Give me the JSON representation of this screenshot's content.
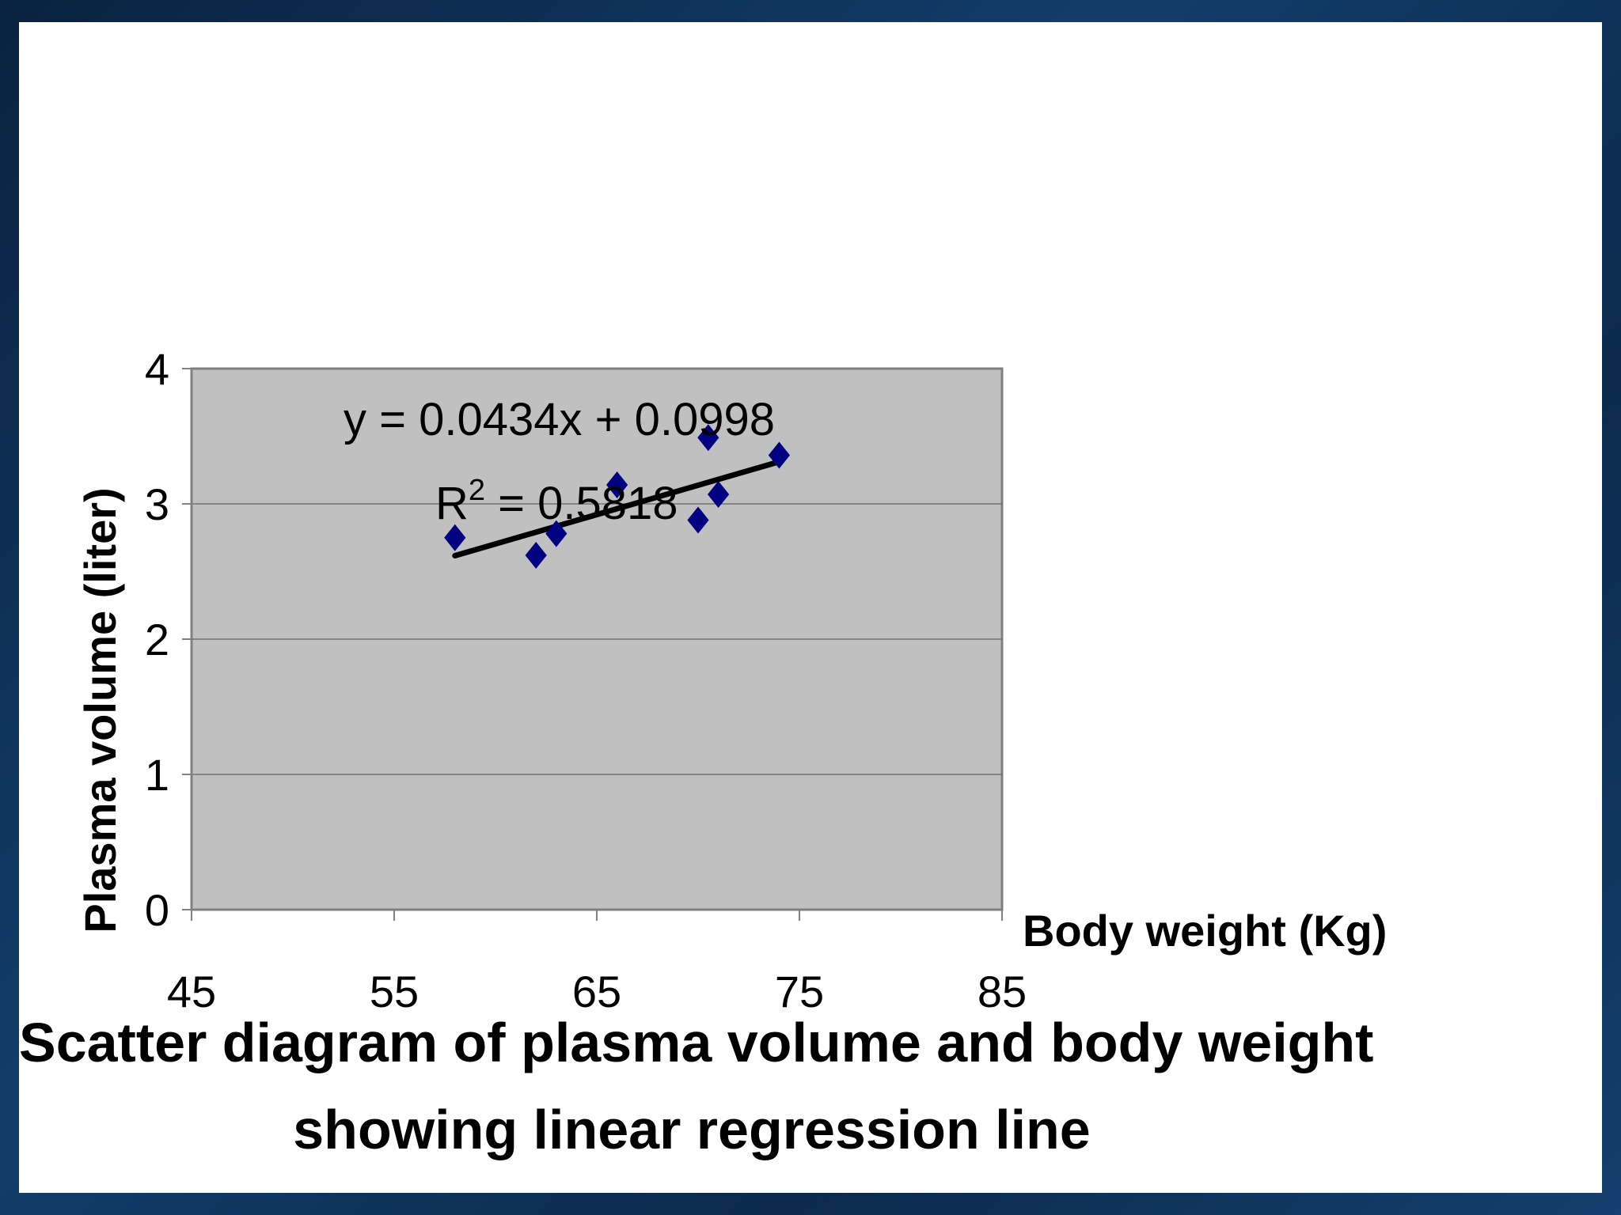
{
  "chart_data": {
    "type": "scatter",
    "title": "",
    "xlabel": "Body weight (Kg)",
    "ylabel": "Plasma volume (liter)",
    "xlim": [
      45,
      85
    ],
    "ylim": [
      0,
      4
    ],
    "x_ticks": [
      "45",
      "55",
      "65",
      "75",
      "85"
    ],
    "y_ticks": [
      "0",
      "1",
      "2",
      "3",
      "4"
    ],
    "grid": true,
    "plot_background": "#c0c0c0",
    "marker_color": "#000080",
    "series": [
      {
        "x": [
          58,
          62,
          63,
          66,
          70,
          70.5,
          71,
          74
        ],
        "y": [
          2.75,
          2.62,
          2.78,
          3.14,
          2.88,
          3.49,
          3.07,
          3.36
        ]
      }
    ],
    "trendline": {
      "slope": 0.0434,
      "intercept": 0.0998,
      "x_range": [
        58,
        74
      ],
      "equation": "y = 0.0434x + 0.0998",
      "r_squared_prefix": "R",
      "r_squared_exponent": "2",
      "r_squared_value": " = 0.5818"
    }
  },
  "caption": {
    "line1": "Scatter diagram of plasma volume and body weight",
    "line2": "showing linear regression line"
  }
}
